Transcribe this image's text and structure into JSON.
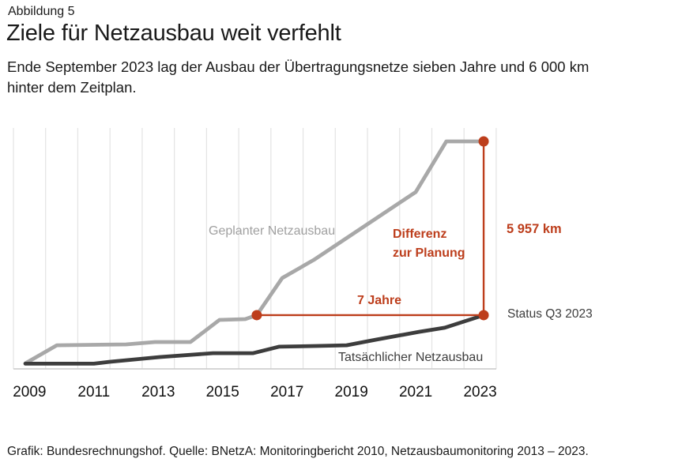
{
  "figure": {
    "label": "Abbildung 5",
    "title": "Ziele für Netzausbau weit verfehlt",
    "subtitle": "Ende September 2023 lag der Ausbau der Übertragungsnetze sieben Jahre und 6 000 km\nhinter dem Zeitplan.",
    "source": "Grafik: Bundesrechnungshof. Quelle: BNetzA: Monitoringbericht 2010, Netzausbaumonitoring 2013 – 2023."
  },
  "annotations_text": {
    "planned_label": "Geplanter Netzausbau",
    "actual_label": "Tatsächlicher Netzausbau",
    "difference_label": "Differenz\nzur Planung",
    "difference_km_label": "5 957 km",
    "difference_years_label": "7 Jahre",
    "status_label": "Status Q3 2023"
  },
  "colors": {
    "accent_red": "#bd3e1c",
    "planned_gray": "#a8a8a8",
    "actual_dark": "#3d3d3d",
    "grid": "#e3e3e3",
    "axis": "#c9c9c9",
    "text": "#1a1a1a",
    "label_gray": "#a0a0a0"
  },
  "chart_data": {
    "type": "line",
    "title": "Ziele für Netzausbau weit verfehlt",
    "xlabel": "",
    "ylabel": "km (no visible axis scale)",
    "x_axis": {
      "tick_labels": [
        "2009",
        "2011",
        "2013",
        "2015",
        "2017",
        "2019",
        "2021",
        "2023"
      ],
      "tick_years": [
        2009,
        2011,
        2013,
        2015,
        2017,
        2019,
        2021,
        2023
      ],
      "range": [
        2009,
        2024
      ],
      "grid": "vertical, one line per year"
    },
    "y_axis": {
      "unit": "km",
      "visible": false,
      "range_km": [
        0,
        8300
      ]
    },
    "series": [
      {
        "name": "Geplanter Netzausbau",
        "color": "#a8a8a8",
        "points": [
          [
            2009.37,
            190
          ],
          [
            2010.35,
            810
          ],
          [
            2012.5,
            840
          ],
          [
            2013.4,
            920
          ],
          [
            2014.5,
            920
          ],
          [
            2015.4,
            1680
          ],
          [
            2016.2,
            1705
          ],
          [
            2016.56,
            1843
          ],
          [
            2017.35,
            3115
          ],
          [
            2018.33,
            3735
          ],
          [
            2021.5,
            6065
          ],
          [
            2022.45,
            7800
          ],
          [
            2023.61,
            7800
          ]
        ]
      },
      {
        "name": "Tatsächlicher Netzausbau",
        "color": "#3d3d3d",
        "points": [
          [
            2009.37,
            180
          ],
          [
            2011.5,
            180
          ],
          [
            2012.0,
            245
          ],
          [
            2013.55,
            405
          ],
          [
            2015.2,
            540
          ],
          [
            2016.45,
            540
          ],
          [
            2017.25,
            760
          ],
          [
            2018.4,
            785
          ],
          [
            2019.35,
            810
          ],
          [
            2020.25,
            1000
          ],
          [
            2021.6,
            1270
          ],
          [
            2022.4,
            1410
          ],
          [
            2023.61,
            1843
          ]
        ]
      }
    ],
    "annotations": {
      "status_year": 2023.61,
      "status_km": 1843,
      "planned_at_status_km": 7800,
      "planned_reached_status_year": 2016.56,
      "difference_km": 5957,
      "difference_years": 7
    }
  }
}
